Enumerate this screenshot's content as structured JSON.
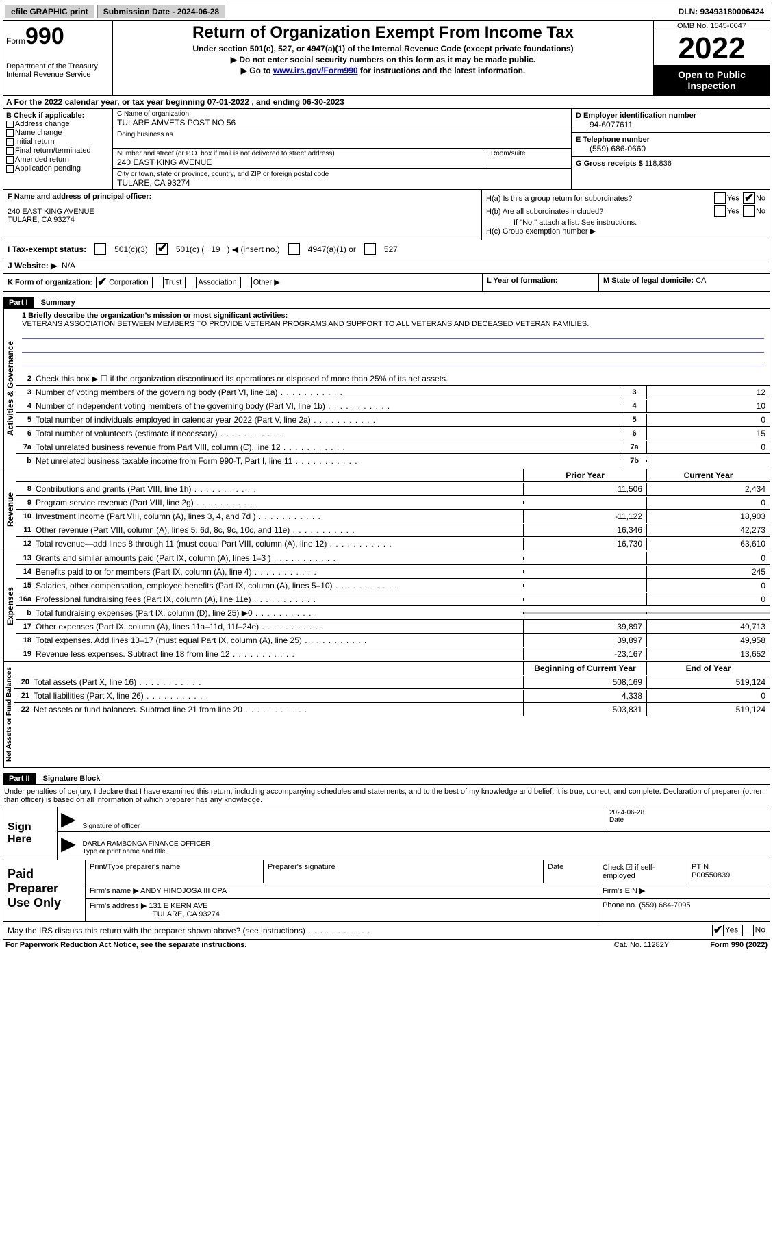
{
  "topbar": {
    "efile": "efile GRAPHIC print",
    "submission": "Submission Date - 2024-06-28",
    "dln": "DLN: 93493180006424"
  },
  "header": {
    "form_word": "Form",
    "form_num": "990",
    "dept": "Department of the Treasury\nInternal Revenue Service",
    "title": "Return of Organization Exempt From Income Tax",
    "sub1": "Under section 501(c), 527, or 4947(a)(1) of the Internal Revenue Code (except private foundations)",
    "sub2": "▶ Do not enter social security numbers on this form as it may be made public.",
    "sub3_pre": "▶ Go to ",
    "sub3_link": "www.irs.gov/Form990",
    "sub3_post": " for instructions and the latest information.",
    "omb": "OMB No. 1545-0047",
    "year": "2022",
    "open": "Open to Public Inspection"
  },
  "row_a": "A  For the 2022 calendar year, or tax year beginning 07-01-2022    , and ending 06-30-2023",
  "section_b": {
    "label": "B Check if applicable:",
    "items": [
      "Address change",
      "Name change",
      "Initial return",
      "Final return/terminated",
      "Amended return",
      "Application pending"
    ]
  },
  "section_c": {
    "name_label": "C Name of organization",
    "name": "TULARE AMVETS POST NO 56",
    "dba_label": "Doing business as",
    "addr_label": "Number and street (or P.O. box if mail is not delivered to street address)",
    "addr": "240 EAST KING AVENUE",
    "room_label": "Room/suite",
    "city_label": "City or town, state or province, country, and ZIP or foreign postal code",
    "city": "TULARE, CA  93274"
  },
  "section_d": {
    "label": "D Employer identification number",
    "ein": "94-6077611",
    "tel_label": "E Telephone number",
    "tel": "(559) 686-0660",
    "gross_label": "G Gross receipts $",
    "gross": "118,836"
  },
  "section_f": {
    "label": "F Name and address of principal officer:",
    "addr1": "240 EAST KING AVENUE",
    "addr2": "TULARE, CA  93274"
  },
  "section_h": {
    "ha": "H(a)  Is this a group return for subordinates?",
    "hb": "H(b)  Are all subordinates included?",
    "hb_note": "If \"No,\" attach a list. See instructions.",
    "hc": "H(c)  Group exemption number ▶",
    "yes": "Yes",
    "no": "No"
  },
  "row_i": {
    "label": "I  Tax-exempt status:",
    "o1": "501(c)(3)",
    "o2a": "501(c) (",
    "o2num": "19",
    "o2b": ") ◀ (insert no.)",
    "o3": "4947(a)(1) or",
    "o4": "527"
  },
  "row_j": {
    "label": "J  Website: ▶",
    "val": "N/A"
  },
  "row_k": {
    "label": "K Form of organization:",
    "opts": [
      "Corporation",
      "Trust",
      "Association",
      "Other ▶"
    ],
    "l_label": "L Year of formation:",
    "m_label": "M State of legal domicile:",
    "m_val": "CA"
  },
  "parts": {
    "p1": "Part I",
    "p1_title": "Summary",
    "p2": "Part II",
    "p2_title": "Signature Block"
  },
  "summary": {
    "line1_label": "1   Briefly describe the organization's mission or most significant activities:",
    "mission": "VETERANS ASSOCIATION BETWEEN MEMBERS TO PROVIDE VETERAN PROGRAMS AND SUPPORT TO ALL VETERANS AND DECEASED VETERAN FAMILIES.",
    "line2": "Check this box ▶ ☐  if the organization discontinued its operations or disposed of more than 25% of its net assets.",
    "vert1": "Activities & Governance",
    "vert2": "Revenue",
    "vert3": "Expenses",
    "vert4": "Net Assets or Fund Balances",
    "rows_gov": [
      {
        "n": "3",
        "d": "Number of voting members of the governing body (Part VI, line 1a)",
        "box": "3",
        "v": "12"
      },
      {
        "n": "4",
        "d": "Number of independent voting members of the governing body (Part VI, line 1b)",
        "box": "4",
        "v": "10"
      },
      {
        "n": "5",
        "d": "Total number of individuals employed in calendar year 2022 (Part V, line 2a)",
        "box": "5",
        "v": "0"
      },
      {
        "n": "6",
        "d": "Total number of volunteers (estimate if necessary)",
        "box": "6",
        "v": "15"
      },
      {
        "n": "7a",
        "d": "Total unrelated business revenue from Part VIII, column (C), line 12",
        "box": "7a",
        "v": "0"
      },
      {
        "n": "b",
        "d": "Net unrelated business taxable income from Form 990-T, Part I, line 11",
        "box": "7b",
        "v": ""
      }
    ],
    "hdr_prior": "Prior Year",
    "hdr_current": "Current Year",
    "rows_rev": [
      {
        "n": "8",
        "d": "Contributions and grants (Part VIII, line 1h)",
        "p": "11,506",
        "c": "2,434"
      },
      {
        "n": "9",
        "d": "Program service revenue (Part VIII, line 2g)",
        "p": "",
        "c": "0"
      },
      {
        "n": "10",
        "d": "Investment income (Part VIII, column (A), lines 3, 4, and 7d )",
        "p": "-11,122",
        "c": "18,903"
      },
      {
        "n": "11",
        "d": "Other revenue (Part VIII, column (A), lines 5, 6d, 8c, 9c, 10c, and 11e)",
        "p": "16,346",
        "c": "42,273"
      },
      {
        "n": "12",
        "d": "Total revenue—add lines 8 through 11 (must equal Part VIII, column (A), line 12)",
        "p": "16,730",
        "c": "63,610"
      }
    ],
    "rows_exp": [
      {
        "n": "13",
        "d": "Grants and similar amounts paid (Part IX, column (A), lines 1–3 )",
        "p": "",
        "c": "0"
      },
      {
        "n": "14",
        "d": "Benefits paid to or for members (Part IX, column (A), line 4)",
        "p": "",
        "c": "245"
      },
      {
        "n": "15",
        "d": "Salaries, other compensation, employee benefits (Part IX, column (A), lines 5–10)",
        "p": "",
        "c": "0"
      },
      {
        "n": "16a",
        "d": "Professional fundraising fees (Part IX, column (A), line 11e)",
        "p": "",
        "c": "0"
      },
      {
        "n": "b",
        "d": "Total fundraising expenses (Part IX, column (D), line 25) ▶0",
        "p": "shade",
        "c": "shade"
      },
      {
        "n": "17",
        "d": "Other expenses (Part IX, column (A), lines 11a–11d, 11f–24e)",
        "p": "39,897",
        "c": "49,713"
      },
      {
        "n": "18",
        "d": "Total expenses. Add lines 13–17 (must equal Part IX, column (A), line 25)",
        "p": "39,897",
        "c": "49,958"
      },
      {
        "n": "19",
        "d": "Revenue less expenses. Subtract line 18 from line 12",
        "p": "-23,167",
        "c": "13,652"
      }
    ],
    "hdr_begin": "Beginning of Current Year",
    "hdr_end": "End of Year",
    "rows_net": [
      {
        "n": "20",
        "d": "Total assets (Part X, line 16)",
        "p": "508,169",
        "c": "519,124"
      },
      {
        "n": "21",
        "d": "Total liabilities (Part X, line 26)",
        "p": "4,338",
        "c": "0"
      },
      {
        "n": "22",
        "d": "Net assets or fund balances. Subtract line 21 from line 20",
        "p": "503,831",
        "c": "519,124"
      }
    ]
  },
  "sig": {
    "intro": "Under penalties of perjury, I declare that I have examined this return, including accompanying schedules and statements, and to the best of my knowledge and belief, it is true, correct, and complete. Declaration of preparer (other than officer) is based on all information of which preparer has any knowledge.",
    "sign_here": "Sign Here",
    "sig_officer": "Signature of officer",
    "date": "Date",
    "date_val": "2024-06-28",
    "name_title": "DARLA RAMBONGA  FINANCE OFFICER",
    "name_label": "Type or print name and title"
  },
  "prep": {
    "title": "Paid Preparer Use Only",
    "r1": {
      "c1": "Print/Type preparer's name",
      "c2": "Preparer's signature",
      "c3": "Date",
      "c4_label": "Check ☑ if self-employed",
      "c5_label": "PTIN",
      "c5_val": "P00550839"
    },
    "r2": {
      "label": "Firm's name    ▶",
      "val": "ANDY HINOJOSA III CPA",
      "ein": "Firm's EIN ▶"
    },
    "r3": {
      "label": "Firm's address ▶",
      "val1": "131 E KERN AVE",
      "val2": "TULARE, CA  93274",
      "phone_label": "Phone no.",
      "phone": "(559) 684-7095"
    }
  },
  "footer": {
    "q": "May the IRS discuss this return with the preparer shown above? (see instructions)",
    "yes": "Yes",
    "no": "No"
  },
  "bottom": {
    "pra": "For Paperwork Reduction Act Notice, see the separate instructions.",
    "cat": "Cat. No. 11282Y",
    "form": "Form 990 (2022)"
  }
}
